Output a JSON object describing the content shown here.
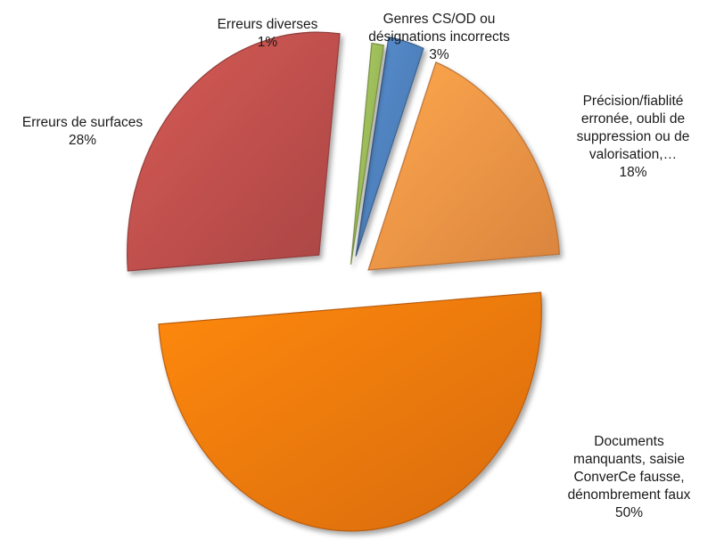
{
  "chart_data": {
    "type": "pie",
    "style": "exploded-3d",
    "title": "",
    "slices": [
      {
        "label": "Genres CS/OD ou désignations incorrects",
        "label_lines": [
          "Genres CS/OD ou",
          "désignations incorrects"
        ],
        "value": 3,
        "value_label": "3%",
        "color": "#4f81bd"
      },
      {
        "label": "Précision/fiablité erronée, oubli de suppression ou de valorisation,…",
        "label_lines": [
          "Précision/fiablité",
          "erronée, oubli de",
          "suppression ou de",
          "valorisation,…"
        ],
        "value": 18,
        "value_label": "18%",
        "color": "#f79646"
      },
      {
        "label": "Documents manquants, saisie ConverCe fausse, dénombrement faux",
        "label_lines": [
          "Documents",
          "manquants, saisie",
          "ConverCe fausse,",
          "dénombrement faux"
        ],
        "value": 50,
        "value_label": "50%",
        "color": "#f57a0f"
      },
      {
        "label": "Erreurs de surfaces",
        "label_lines": [
          "Erreurs de surfaces"
        ],
        "value": 28,
        "value_label": "28%",
        "color": "#c0504d"
      },
      {
        "label": "Erreurs diverses",
        "label_lines": [
          "Erreurs diverses"
        ],
        "value": 1,
        "value_label": "1%",
        "color": "#9bbb59"
      }
    ]
  }
}
